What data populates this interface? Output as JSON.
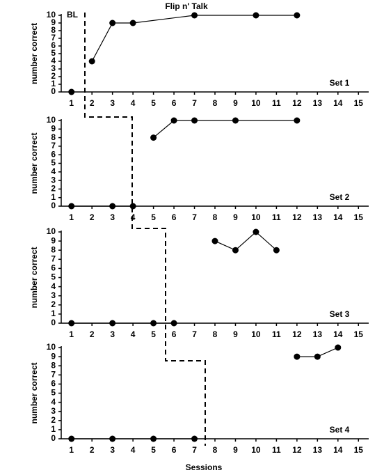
{
  "chart_data": [
    {
      "type": "line",
      "title": "Flip n' Talk",
      "annotations": [
        "BL",
        "Set 1"
      ],
      "y_label": "number correct",
      "xlim": [
        0.5,
        15.5
      ],
      "xticks": [
        1,
        2,
        3,
        4,
        5,
        6,
        7,
        8,
        9,
        10,
        11,
        12,
        13,
        14,
        15
      ],
      "ylim": [
        0,
        10
      ],
      "yticks": [
        0,
        1,
        2,
        3,
        4,
        5,
        6,
        7,
        8,
        9,
        10
      ],
      "grid": false,
      "series": [
        {
          "color": "#000000",
          "x": [
            1
          ],
          "values": [
            0
          ]
        },
        {
          "color": "#000000",
          "x": [
            2,
            3,
            4,
            7,
            10,
            12
          ],
          "values": [
            4,
            9,
            9,
            10,
            10,
            10
          ]
        }
      ]
    },
    {
      "type": "line",
      "annotations": [
        "Set 2"
      ],
      "y_label": "number correct",
      "xlim": [
        0.5,
        15.5
      ],
      "xticks": [
        1,
        2,
        3,
        4,
        5,
        6,
        7,
        8,
        9,
        10,
        11,
        12,
        13,
        14,
        15
      ],
      "ylim": [
        0,
        10
      ],
      "yticks": [
        0,
        1,
        2,
        3,
        4,
        5,
        6,
        7,
        8,
        9,
        10
      ],
      "grid": false,
      "series": [
        {
          "color": "#000000",
          "x": [
            1,
            3,
            4
          ],
          "values": [
            0,
            0,
            0
          ]
        },
        {
          "color": "#000000",
          "x": [
            5,
            6,
            7,
            9,
            12
          ],
          "values": [
            8,
            10,
            10,
            10,
            10
          ]
        }
      ]
    },
    {
      "type": "line",
      "annotations": [
        "Set 3"
      ],
      "y_label": "number correct",
      "xlim": [
        0.5,
        15.5
      ],
      "xticks": [
        1,
        2,
        3,
        4,
        5,
        6,
        7,
        8,
        9,
        10,
        11,
        12,
        13,
        14,
        15
      ],
      "ylim": [
        0,
        10
      ],
      "yticks": [
        0,
        1,
        2,
        3,
        4,
        5,
        6,
        7,
        8,
        9,
        10
      ],
      "grid": false,
      "series": [
        {
          "color": "#000000",
          "x": [
            1,
            3,
            5,
            6
          ],
          "values": [
            0,
            0,
            0,
            0
          ]
        },
        {
          "color": "#000000",
          "x": [
            8,
            9,
            10,
            11
          ],
          "values": [
            9,
            8,
            10,
            8
          ]
        }
      ]
    },
    {
      "type": "line",
      "annotations": [
        "Set 4"
      ],
      "y_label": "number correct",
      "x_label": "Sessions",
      "xlim": [
        0.5,
        15.5
      ],
      "xticks": [
        1,
        2,
        3,
        4,
        5,
        6,
        7,
        8,
        9,
        10,
        11,
        12,
        13,
        14,
        15
      ],
      "ylim": [
        0,
        10
      ],
      "yticks": [
        0,
        1,
        2,
        3,
        4,
        5,
        6,
        7,
        8,
        9,
        10
      ],
      "grid": false,
      "series": [
        {
          "color": "#000000",
          "x": [
            1,
            3,
            5,
            7
          ],
          "values": [
            0,
            0,
            0,
            0
          ]
        },
        {
          "color": "#000000",
          "x": [
            12,
            13,
            14
          ],
          "values": [
            9,
            9,
            10
          ]
        }
      ]
    }
  ]
}
